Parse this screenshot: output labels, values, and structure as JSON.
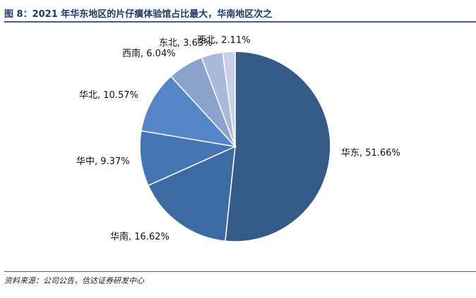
{
  "figure": {
    "title": "图 8：2021 年华东地区的片仔癀体验馆占比最大，华南地区次之",
    "source": "资料来源：公司公告，信达证券研发中心"
  },
  "chart_data": {
    "type": "pie",
    "start_angle_deg": 0,
    "direction": "clockwise",
    "slices": [
      {
        "name": "华东",
        "value": 51.66,
        "label": "华东, 51.66%",
        "color": "#365a87"
      },
      {
        "name": "华南",
        "value": 16.62,
        "label": "华南, 16.62%",
        "color": "#3e6aa4"
      },
      {
        "name": "华中",
        "value": 9.37,
        "label": "华中, 9.37%",
        "color": "#4675b4"
      },
      {
        "name": "华北",
        "value": 10.57,
        "label": "华北, 10.57%",
        "color": "#5486c7"
      },
      {
        "name": "西南",
        "value": 6.04,
        "label": "西南, 6.04%",
        "color": "#8aa2cc"
      },
      {
        "name": "东北",
        "value": 3.63,
        "label": "东北, 3.63%",
        "color": "#a9b9da"
      },
      {
        "name": "西北",
        "value": 2.11,
        "label": "西北, 2.11%",
        "color": "#c6d0e6"
      }
    ]
  }
}
